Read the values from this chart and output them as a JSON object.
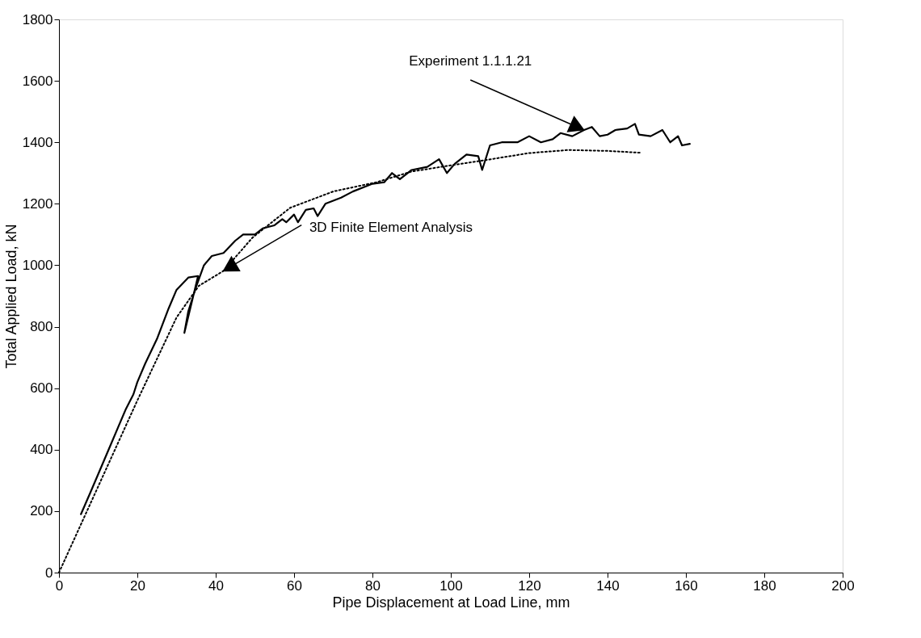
{
  "chart_data": {
    "type": "line",
    "xlabel": "Pipe Displacement at Load Line, mm",
    "ylabel": "Total Applied Load, kN",
    "xlim": [
      0,
      200
    ],
    "ylim": [
      0,
      1800
    ],
    "xticks": [
      0,
      20,
      40,
      60,
      80,
      100,
      120,
      140,
      160,
      180,
      200
    ],
    "yticks": [
      0,
      200,
      400,
      600,
      800,
      {
        "value": 1000,
        "label": "1000"
      },
      {
        "value": 1200,
        "label": "1200"
      },
      {
        "value": 1400,
        "label": "1400"
      },
      {
        "value": 1600,
        "label": "1600"
      },
      {
        "value": 1800,
        "label": "1800"
      }
    ],
    "series": [
      {
        "color": "#000000",
        "line_style": "solid",
        "x": [
          5.6,
          8,
          10,
          13,
          15,
          17,
          19,
          20,
          22,
          25,
          28,
          30,
          33,
          35.5,
          32,
          33,
          35,
          37,
          39,
          42,
          45,
          47,
          50,
          52,
          55,
          57,
          58,
          60,
          61,
          63,
          65,
          66,
          68,
          70,
          72,
          75,
          80,
          83,
          85,
          87,
          90,
          94,
          97,
          99,
          101,
          104,
          107,
          108,
          110,
          113,
          117,
          120,
          123,
          126,
          128,
          131,
          134,
          136,
          138,
          140,
          142,
          145,
          147,
          148,
          151,
          154,
          156,
          158,
          159,
          161
        ],
        "values": [
          190,
          260,
          320,
          410,
          470,
          530,
          580,
          620,
          680,
          760,
          860,
          920,
          960,
          965,
          780,
          850,
          930,
          1000,
          1030,
          1040,
          1080,
          1100,
          1100,
          1120,
          1130,
          1150,
          1140,
          1165,
          1140,
          1180,
          1185,
          1160,
          1200,
          1210,
          1220,
          1240,
          1265,
          1270,
          1300,
          1280,
          1310,
          1320,
          1345,
          1300,
          1330,
          1360,
          1355,
          1310,
          1390,
          1400,
          1400,
          1420,
          1400,
          1410,
          1430,
          1420,
          1440,
          1450,
          1420,
          1425,
          1440,
          1445,
          1460,
          1425,
          1420,
          1440,
          1400,
          1420,
          1390,
          1395
        ]
      },
      {
        "color": "#000000",
        "line_style": "dotted",
        "x": [
          0,
          10,
          20,
          30,
          35.7,
          41.9,
          49.4,
          59,
          70,
          81,
          90,
          100,
          107.8,
          120,
          130,
          140,
          148.7
        ],
        "values": [
          0,
          280,
          560,
          830,
          933,
          981,
          1090,
          1187,
          1240,
          1270,
          1305,
          1325,
          1340,
          1365,
          1375,
          1372,
          1366
        ]
      }
    ],
    "annotations": [
      {
        "text": "Experiment 1.1.1.21",
        "x": 134,
        "y": 1440
      },
      {
        "text": "3D Finite Element Analysis",
        "x": 41.9,
        "y": 981
      }
    ]
  }
}
